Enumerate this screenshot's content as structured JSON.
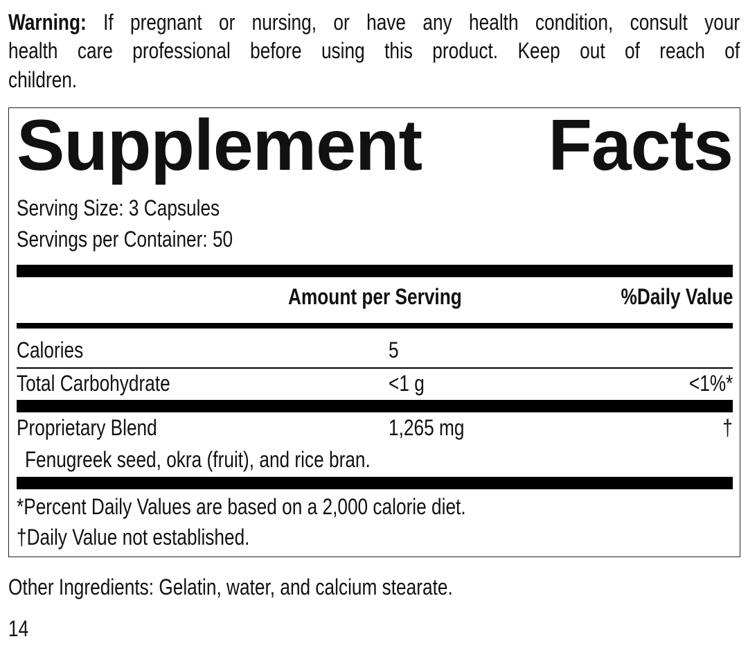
{
  "warning": {
    "label": "Warning:",
    "line1": "If pregnant or nursing, or have any health condition, consult your",
    "line2": "health care professional before using this product. Keep out of reach of",
    "line3": "children."
  },
  "facts": {
    "title": "Supplement Facts",
    "serving_size": "Serving Size: 3 Capsules",
    "servings_per_container": "Servings per Container: 50",
    "header": {
      "amount": "Amount per Serving",
      "dv": "%Daily Value"
    },
    "rows": [
      {
        "name": "Calories",
        "amount": "5",
        "dv": ""
      },
      {
        "name": "Total Carbohydrate",
        "amount": "<1 g",
        "dv": "<1%*"
      },
      {
        "name": "Proprietary Blend",
        "amount": "1,265 mg",
        "dv": "†",
        "detail": "Fenugreek seed, okra (fruit), and rice bran."
      }
    ],
    "footnotes": [
      "*Percent Daily Values are based on a 2,000 calorie diet.",
      "†Daily Value not established."
    ]
  },
  "other_ingredients": "Other Ingredients: Gelatin, water, and calcium stearate.",
  "page_number": "14"
}
